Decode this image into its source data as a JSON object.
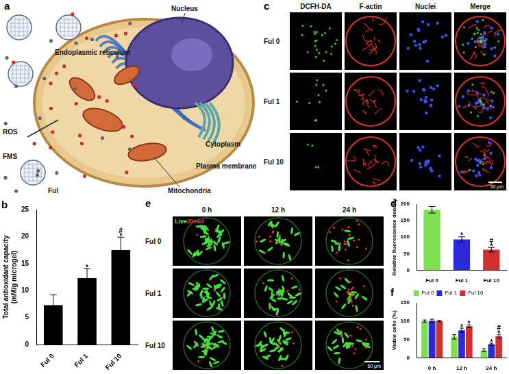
{
  "chart_data": [
    {
      "panel_label": "b",
      "type": "bar",
      "y_label": [
        "Total antioxidant capacity",
        "(mM/g microgel)"
      ],
      "categories": [
        "Ful 0",
        "Ful 1",
        "Ful 10"
      ],
      "values": [
        7.3,
        12.3,
        17.5
      ],
      "errors": [
        1.9,
        1.8,
        2.4
      ],
      "significance": [
        null,
        [
          "*"
        ],
        [
          "#",
          "*"
        ]
      ],
      "color": "#000000",
      "ylim": [
        0,
        25
      ],
      "yticks": [
        0,
        5,
        10,
        15,
        20,
        25
      ],
      "grid": false
    },
    {
      "panel_label": "d",
      "type": "bar",
      "y_label": [
        "Relative fluorescence density"
      ],
      "categories": [
        "Ful 0",
        "Ful 1",
        "Ful 10"
      ],
      "values": [
        183,
        93,
        62
      ],
      "errors": [
        10,
        8,
        7
      ],
      "significance": [
        null,
        [
          "*"
        ],
        [
          "#",
          "*"
        ]
      ],
      "colors": [
        "#7ee050",
        "#2a2ad8",
        "#d03030"
      ],
      "ylim": [
        0,
        200
      ],
      "yticks": [
        0,
        50,
        100,
        150,
        200
      ],
      "grid": false
    },
    {
      "panel_label": "f",
      "type": "bar",
      "y_label": [
        "Viable cells (%)"
      ],
      "categories": [
        "0 h",
        "12 h",
        "24 h"
      ],
      "series": [
        {
          "name": "Ful 0",
          "color": "#7ee050",
          "values": [
            100,
            57,
            21
          ],
          "errors": [
            3,
            6,
            4
          ],
          "significance": [
            null,
            null,
            null
          ]
        },
        {
          "name": "Ful 1",
          "color": "#2a2ad8",
          "values": [
            101,
            75,
            37
          ],
          "errors": [
            4,
            6,
            3
          ],
          "significance": [
            null,
            [
              "*"
            ],
            [
              "*"
            ]
          ]
        },
        {
          "name": "Ful 10",
          "color": "#d03030",
          "values": [
            100,
            86,
            59
          ],
          "errors": [
            2,
            4,
            5
          ],
          "significance": [
            null,
            [
              "*"
            ],
            [
              "#",
              "*"
            ]
          ]
        }
      ],
      "ylim": [
        0,
        150
      ],
      "yticks": [
        0,
        50,
        100,
        150
      ],
      "legend": "top",
      "grid": false
    }
  ],
  "diagram_a": {
    "panel_label": "a",
    "labels": {
      "nucleus": "Nucleus",
      "er": "Endoplasmic reticulum",
      "ros": "ROS",
      "fms": "FMS",
      "ful": "Ful",
      "mitochondria": "Mitochondria",
      "membrane": "Plasma membrane",
      "cytoplasm": "Cytoplasm"
    }
  },
  "image_c": {
    "panel_label": "c",
    "columns": [
      "DCFH-DA",
      "F-actin",
      "Nuclei",
      "Merge"
    ],
    "rows": [
      "Ful 0",
      "Ful 1",
      "Ful 10"
    ],
    "scale_bar": "50 μm"
  },
  "image_e": {
    "panel_label": "e",
    "columns": [
      "0 h",
      "12 h",
      "24 h"
    ],
    "rows": [
      "Ful 0",
      "Ful 1",
      "Ful 10"
    ],
    "overlay_label": "Live/Dead",
    "scale_bar": "50 μm"
  }
}
